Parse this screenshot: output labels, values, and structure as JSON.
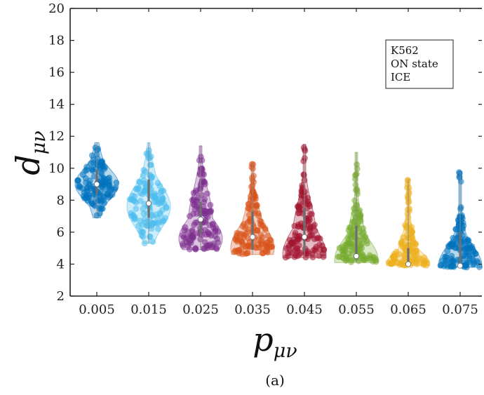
{
  "caption": "(a)",
  "chart_data": {
    "type": "violin",
    "title": "",
    "xlabel": "p_{μν}",
    "ylabel": "d_{μν}",
    "xlabel_main": "p",
    "xlabel_sub": "μν",
    "ylabel_main": "d",
    "ylabel_sub": "μν",
    "ylim": [
      2,
      20
    ],
    "y_ticks": [
      "2",
      "4",
      "6",
      "8",
      "10",
      "12",
      "14",
      "16",
      "18",
      "20"
    ],
    "categories": [
      "0.005",
      "0.015",
      "0.025",
      "0.035",
      "0.045",
      "0.055",
      "0.065",
      "0.075"
    ],
    "legend": [
      "K562",
      "ON state",
      "ICE"
    ],
    "legend_position": "top-right",
    "grid": false,
    "series": [
      {
        "category": "0.005",
        "color": "#0072BD",
        "min": 6.9,
        "q1": 8.4,
        "median": 9.0,
        "q3": 9.9,
        "max": 11.6,
        "mode": 9.0
      },
      {
        "category": "0.015",
        "color": "#4DBEEE",
        "min": 5.3,
        "q1": 6.9,
        "median": 7.8,
        "q3": 9.3,
        "max": 11.6,
        "mode": 7.6
      },
      {
        "category": "0.025",
        "color": "#7E2F8E",
        "min": 4.9,
        "q1": 5.9,
        "median": 6.8,
        "q3": 7.9,
        "max": 11.4,
        "mode": 5.6
      },
      {
        "category": "0.035",
        "color": "#D95319",
        "min": 4.6,
        "q1": 4.9,
        "median": 5.7,
        "q3": 7.3,
        "max": 10.3,
        "mode": 5.0
      },
      {
        "category": "0.045",
        "color": "#A2142F",
        "min": 4.4,
        "q1": 4.8,
        "median": 5.7,
        "q3": 7.5,
        "max": 11.5,
        "mode": 4.6
      },
      {
        "category": "0.055",
        "color": "#77AC30",
        "min": 4.1,
        "q1": 4.3,
        "median": 4.5,
        "q3": 6.4,
        "max": 11.0,
        "mode": 4.3
      },
      {
        "category": "0.065",
        "color": "#EDB120",
        "min": 3.9,
        "q1": 3.95,
        "median": 4.0,
        "q3": 5.0,
        "max": 9.3,
        "mode": 4.0
      },
      {
        "category": "0.075",
        "color": "#0072BD",
        "min": 3.8,
        "q1": 3.85,
        "median": 3.9,
        "q3": 6.0,
        "max": 9.8,
        "mode": 3.9
      }
    ]
  }
}
